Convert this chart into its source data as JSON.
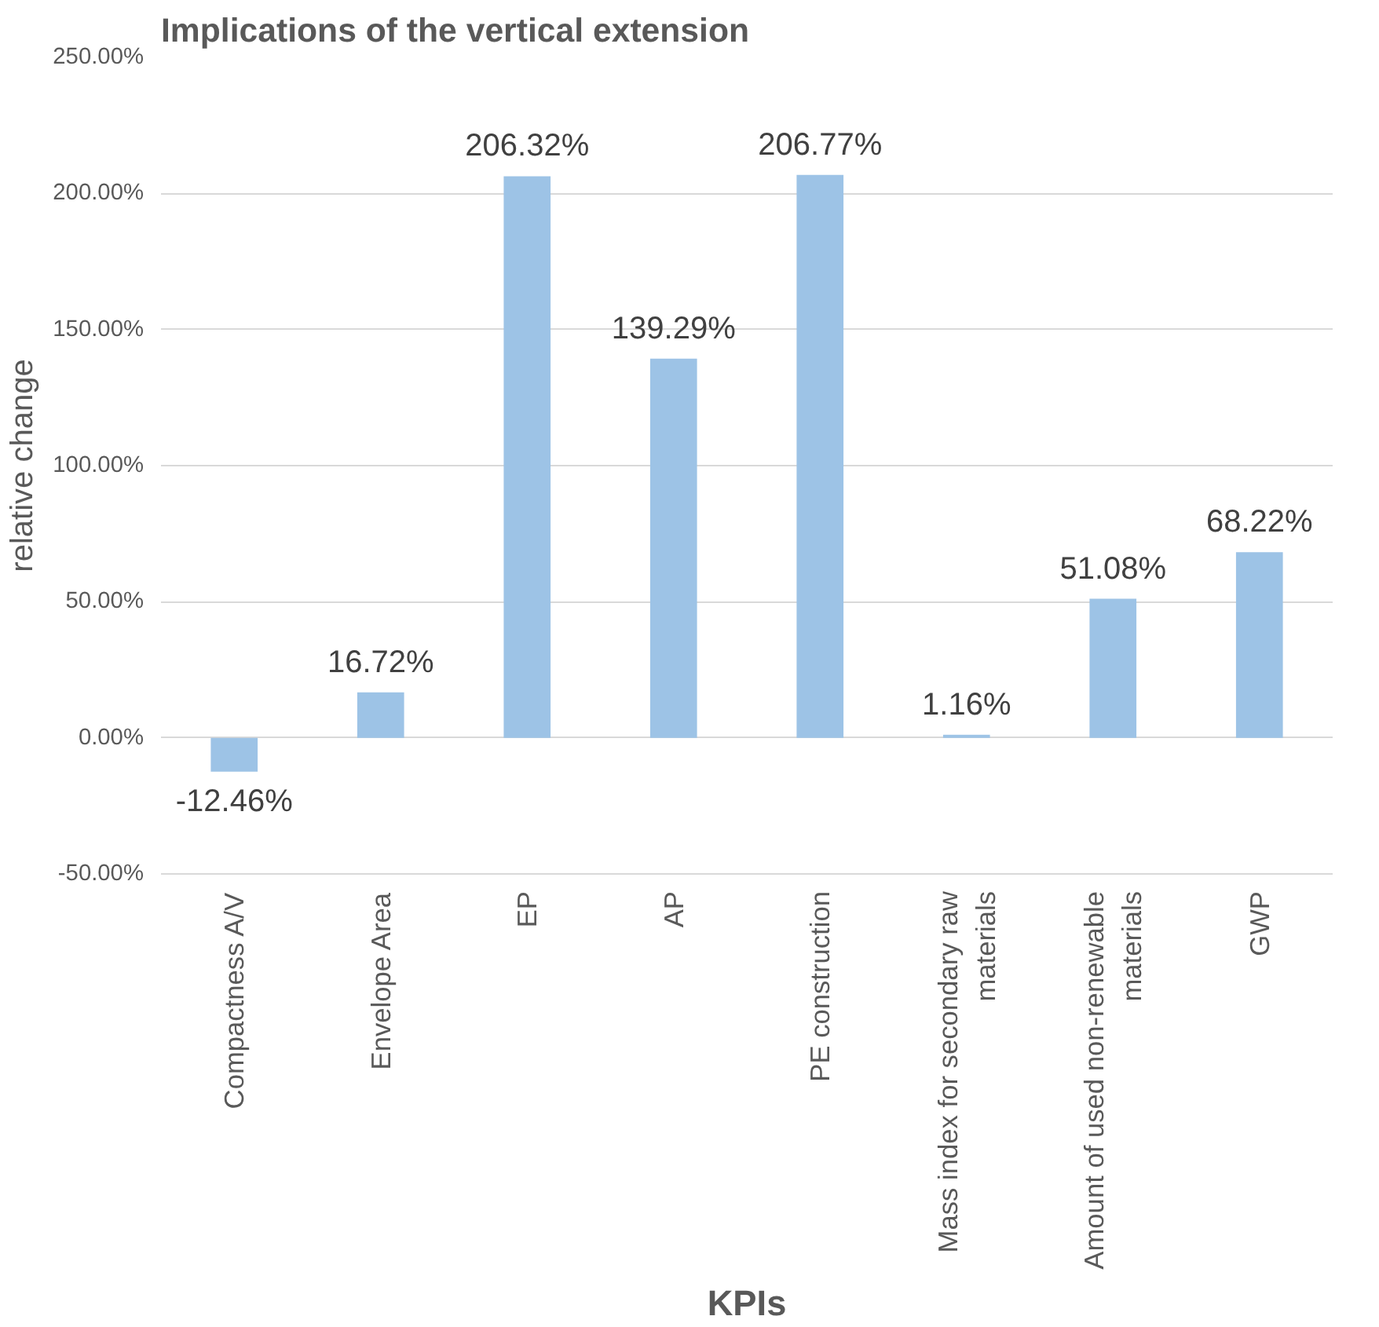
{
  "chart_data": {
    "type": "bar",
    "title": "Implications of the vertical extension",
    "xlabel": "KPIs",
    "ylabel": "relative change",
    "categories": [
      "Compactness A/V",
      "Envelope Area",
      "EP",
      "AP",
      "PE construction",
      "Mass index for secondary raw materials",
      "Amount of used non-renewable materials",
      "GWP"
    ],
    "values": [
      -12.46,
      16.72,
      206.32,
      139.29,
      206.77,
      1.16,
      51.08,
      68.22
    ],
    "value_labels": [
      "-12.46%",
      "16.72%",
      "206.32%",
      "139.29%",
      "206.77%",
      "1.16%",
      "51.08%",
      "68.22%"
    ],
    "color": "#9dc3e6",
    "ylim": [
      -50,
      250
    ],
    "yticks": [
      {
        "value": -50,
        "label": "-50.00%"
      },
      {
        "value": 0,
        "label": "0.00%"
      },
      {
        "value": 50,
        "label": "50.00%"
      },
      {
        "value": 100,
        "label": "100.00%"
      },
      {
        "value": 150,
        "label": "150.00%"
      },
      {
        "value": 200,
        "label": "200.00%"
      },
      {
        "value": 250,
        "label": "250.00%"
      }
    ],
    "grid": "y"
  }
}
